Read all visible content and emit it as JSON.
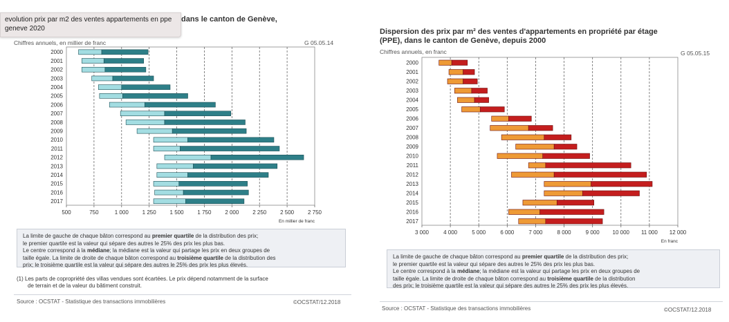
{
  "tooltip": {
    "text": "evolution prix par m2 des ventes appartements en ppe geneve 2020"
  },
  "left": {
    "title_visible": "dans le canton de  Genève,",
    "subtitle": "Chiffres annuels, en millier de franc",
    "code": "G 05.05.14",
    "note": {
      "l1a": "La limite de gauche de chaque bâton correspond au ",
      "l1b": "premier quartile",
      "l1c": " de la distribution des prix;",
      "l2": "le premier quartile est la valeur qui sépare des autres le 25% des prix les plus bas.",
      "l3a": "Le centre correspond à la ",
      "l3b": "médiane",
      "l3c": "; la médiane est la valeur qui partage les prix en deux groupes de",
      "l4a": "taille égale. La limite de droite de chaque bâton correspond au ",
      "l4b": "troisième quartile",
      "l4c": " de la distribution des",
      "l5": "prix; le troisième quartile est la valeur qui sépare des autres le 25% des prix les plus élevés."
    },
    "footnote_1": "(1) Les parts de copropriété des villas vendues sont écartées. Le prix dépend notamment de la surface",
    "footnote_2": "de terrain et de la valeur du bâtiment construit.",
    "source": "Source : OCSTAT - Statistique des transactions immobilières",
    "copyright": "©OCSTAT/12.2018"
  },
  "right": {
    "title_1": "Dispersion des prix par m² des ventes d'appartements en propriété par étage",
    "title_2": "(PPE), dans le canton de Genève, depuis 2000",
    "subtitle": "Chiffres annuels, en franc",
    "code": "G 05.05.15",
    "note": {
      "l1a": "La limite de gauche de chaque bâton correspond au ",
      "l1b": "premier quartile",
      "l1c": " de la distribution des prix;",
      "l2": "le premier quartile est la valeur qui sépare des autres le 25% des prix les plus bas.",
      "l3a": "Le centre correspond à la ",
      "l3b": "médiane",
      "l3c": "; la médiane est la valeur qui partage les prix en deux groupes de",
      "l4a": "taille égale. La limite de droite de chaque bâton correspond au ",
      "l4b": "troisième quartile",
      "l4c": " de la distribution",
      "l5": "des prix; le troisième quartile est la valeur qui sépare des autres le 25% des prix les plus élevés."
    },
    "source": "Source : OCSTAT - Statistique des transactions immobilières",
    "copyright": "©OCSTAT/12.2018"
  },
  "chart_data": [
    {
      "type": "bar",
      "subtype": "horizontal-quartile-range",
      "unit_label": "En millier de franc",
      "categories": [
        "2000",
        "2001",
        "2002",
        "2003",
        "2004",
        "2005",
        "2006",
        "2007",
        "2008",
        "2009",
        "2010",
        "2011",
        "2012",
        "2013",
        "2014",
        "2015",
        "2016",
        "2017"
      ],
      "q1": [
        610,
        640,
        640,
        730,
        790,
        800,
        890,
        990,
        1040,
        1140,
        1290,
        1290,
        1390,
        1320,
        1320,
        1290,
        1300,
        1290
      ],
      "median": [
        820,
        840,
        850,
        920,
        1000,
        1010,
        1210,
        1390,
        1390,
        1460,
        1600,
        1530,
        1810,
        1650,
        1600,
        1520,
        1560,
        1580
      ],
      "q3": [
        1240,
        1200,
        1220,
        1290,
        1440,
        1600,
        1850,
        1990,
        2120,
        2130,
        2380,
        2430,
        2650,
        2410,
        2330,
        2140,
        2150,
        2110
      ],
      "xlim": [
        500,
        2750
      ],
      "x_ticks": [
        500,
        750,
        1000,
        1250,
        1500,
        1750,
        2000,
        2250,
        2500,
        2750
      ],
      "x_tick_labels": [
        "500",
        "750",
        "1 000",
        "1 250",
        "1 500",
        "1 750",
        "2 000",
        "2 250",
        "2 500",
        "2 750"
      ],
      "colors": {
        "lower": "#a3dde2",
        "upper": "#2e7f88",
        "stroke": "#1c4f56"
      },
      "grid": "vertical-dashed"
    },
    {
      "type": "bar",
      "subtype": "horizontal-quartile-range",
      "unit_label": "En franc",
      "categories": [
        "2000",
        "2001",
        "2002",
        "2003",
        "2004",
        "2005",
        "2006",
        "2007",
        "2008",
        "2009",
        "2010",
        "2011",
        "2012",
        "2013",
        "2014",
        "2015",
        "2016",
        "2017"
      ],
      "q1": [
        3600,
        3950,
        3900,
        4150,
        4250,
        4400,
        5450,
        5400,
        5800,
        6300,
        5650,
        6750,
        6150,
        7300,
        7300,
        6550,
        6050,
        6400
      ],
      "median": [
        4050,
        4450,
        4450,
        4750,
        4850,
        5050,
        6050,
        6750,
        7300,
        7650,
        7250,
        7350,
        7650,
        8950,
        8650,
        7750,
        7150,
        7350
      ],
      "q3": [
        4600,
        4850,
        4950,
        5300,
        5350,
        5900,
        6850,
        7600,
        8250,
        8450,
        8900,
        10350,
        10900,
        11100,
        10650,
        9050,
        9400,
        9350
      ],
      "xlim": [
        3000,
        12000
      ],
      "x_ticks": [
        3000,
        4000,
        5000,
        6000,
        7000,
        8000,
        9000,
        10000,
        11000,
        12000
      ],
      "x_tick_labels": [
        "3 000",
        "4 000",
        "5 000",
        "6 000",
        "7 000",
        "8 000",
        "9 000",
        "10 000",
        "11 000",
        "12 000"
      ],
      "colors": {
        "lower": "#ee9a36",
        "upper": "#c41e1e",
        "stroke": "#6b1010"
      },
      "grid": "vertical-dashed"
    }
  ]
}
